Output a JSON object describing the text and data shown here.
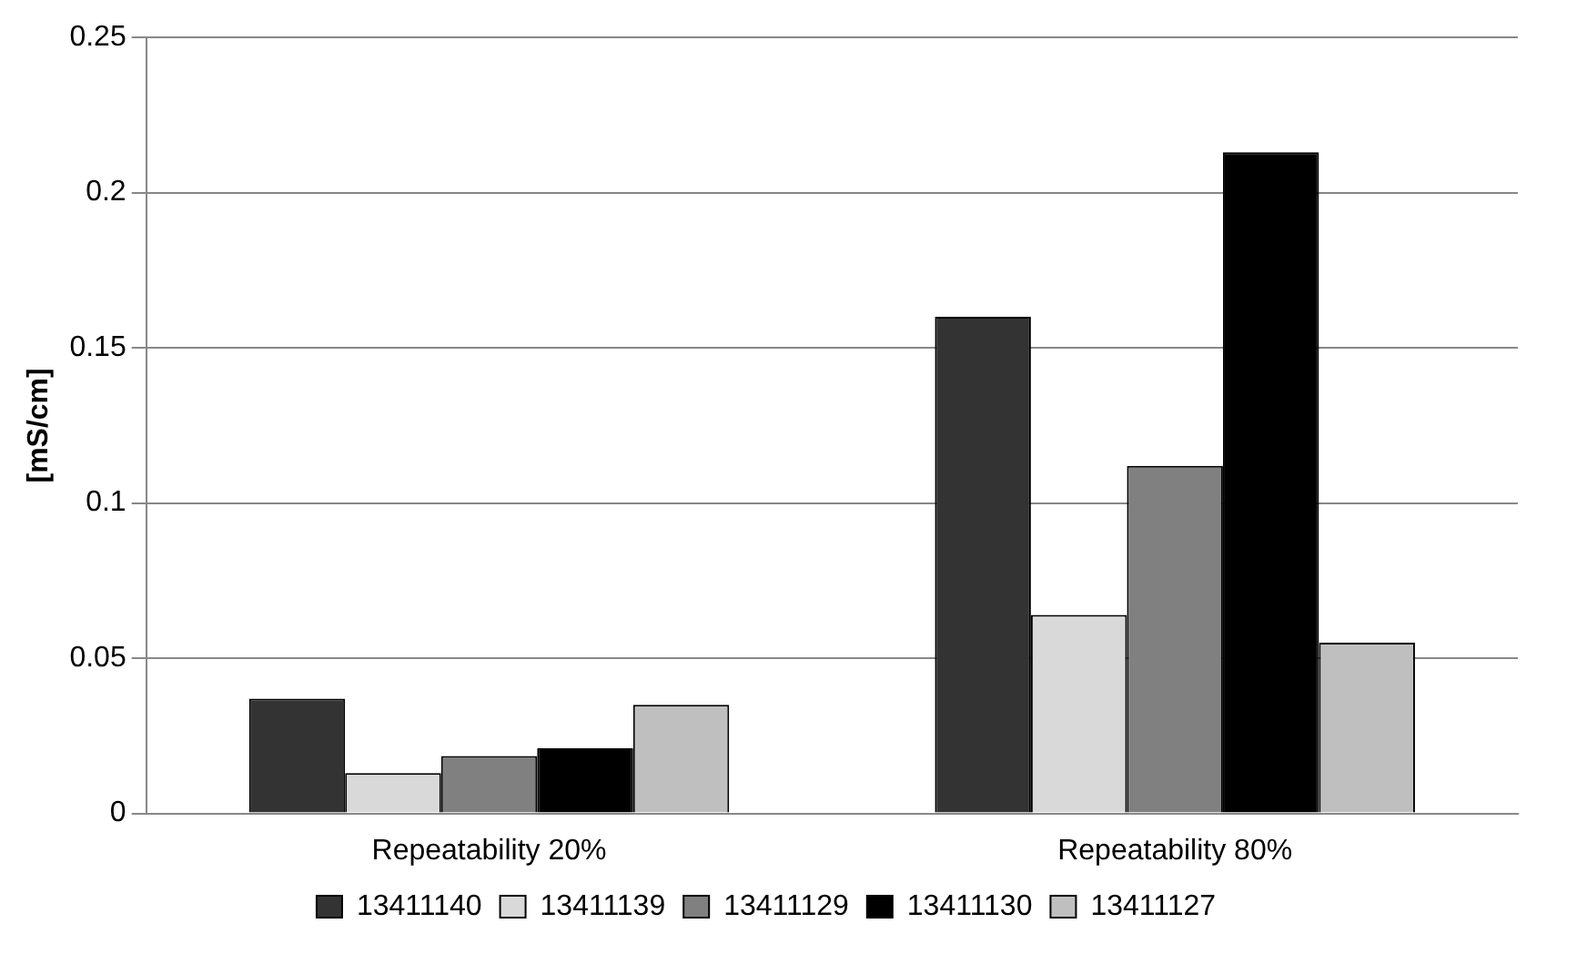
{
  "chart_data": {
    "type": "bar",
    "ylabel": "[mS/cm]",
    "categories": [
      "Repeatability 20%",
      "Repeatability 80%"
    ],
    "series": [
      {
        "name": "13411140",
        "color": "#333333",
        "values": [
          0.037,
          0.16
        ]
      },
      {
        "name": "13411139",
        "color": "#d9d9d9",
        "values": [
          0.013,
          0.064
        ]
      },
      {
        "name": "13411129",
        "color": "#808080",
        "values": [
          0.0185,
          0.112
        ]
      },
      {
        "name": "13411130",
        "color": "#000000",
        "values": [
          0.021,
          0.213
        ]
      },
      {
        "name": "13411127",
        "color": "#bfbfbf",
        "values": [
          0.035,
          0.055
        ]
      }
    ],
    "ylim": [
      0,
      0.25
    ],
    "yticks": [
      0,
      0.05,
      0.1,
      0.15,
      0.2,
      0.25
    ],
    "grid": "y",
    "legend": "bottom"
  }
}
